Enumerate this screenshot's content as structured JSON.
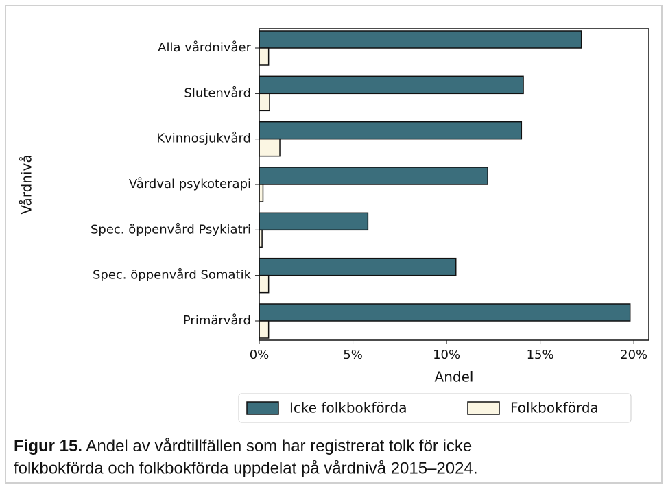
{
  "chart_data": {
    "type": "barh",
    "xlabel": "Andel",
    "ylabel": "Vårdnivå",
    "categories": [
      "Alla vårdnivåer",
      "Slutenvård",
      "Kvinnosjukvård",
      "Vårdval psykoterapi",
      "Spec. öppenvård Psykiatri",
      "Spec. öppenvård Somatik",
      "Primärvård"
    ],
    "series": [
      {
        "name": "Icke folkbokförda",
        "color": "#3b6e7c",
        "values": [
          17.2,
          14.1,
          14.0,
          12.2,
          5.8,
          10.5,
          19.8
        ]
      },
      {
        "name": "Folkbokförda",
        "color": "#fbf6e3",
        "values": [
          0.5,
          0.55,
          1.1,
          0.2,
          0.15,
          0.5,
          0.5
        ]
      }
    ],
    "xlim": [
      0,
      20.8
    ],
    "xticks": [
      {
        "value": 0,
        "label": "0%"
      },
      {
        "value": 5,
        "label": "5%"
      },
      {
        "value": 10,
        "label": "10%"
      },
      {
        "value": 15,
        "label": "15%"
      },
      {
        "value": 20,
        "label": "20%"
      }
    ],
    "legend": "bottom",
    "caption": {
      "label": "Figur 15.",
      "text_lines": [
        "Andel av vårdtillfällen som har registrerat tolk för icke",
        "folkbokförda och folkbokförda uppdelat på vårdnivå 2015–2024."
      ]
    }
  }
}
